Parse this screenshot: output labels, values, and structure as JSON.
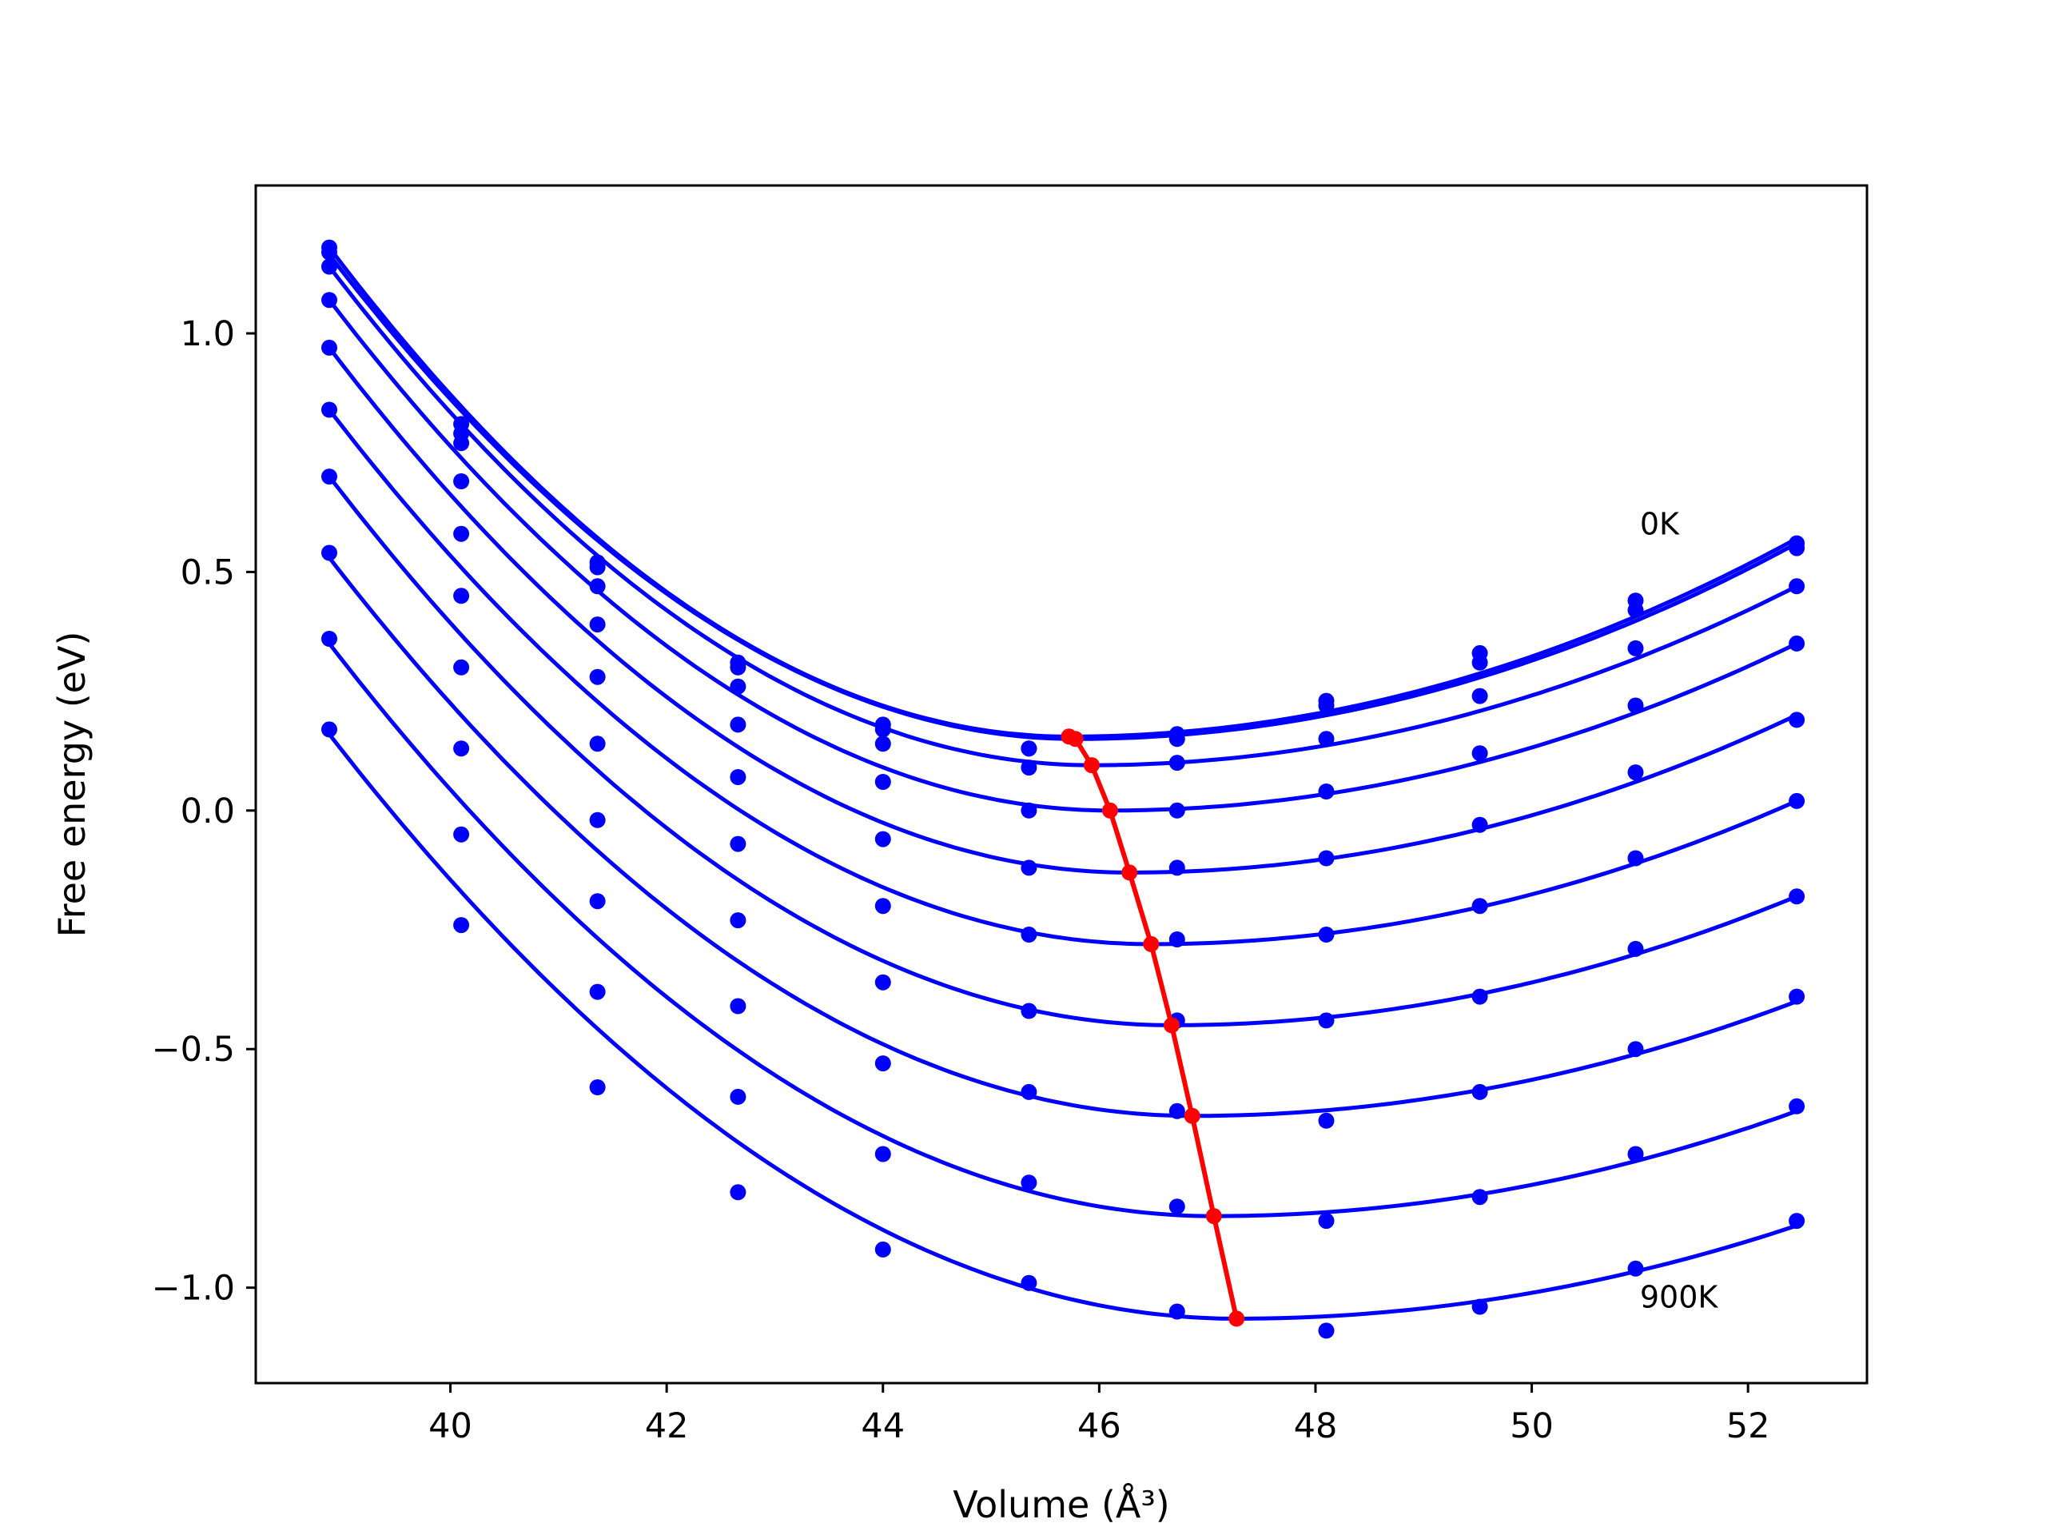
{
  "chart_data": {
    "type": "line",
    "xlabel": "Volume (Å³)",
    "ylabel": "Free energy (eV)",
    "xlim": [
      38.2,
      53.1
    ],
    "ylim": [
      -1.2,
      1.31
    ],
    "xticks": [
      40,
      42,
      44,
      46,
      48,
      50,
      52
    ],
    "xtick_labels": [
      "40",
      "42",
      "44",
      "46",
      "48",
      "50",
      "52"
    ],
    "yticks": [
      -1.0,
      -0.5,
      0.0,
      0.5,
      1.0
    ],
    "ytick_labels": [
      "−1.0",
      "−0.5",
      "0.0",
      "0.5",
      "1.0"
    ],
    "grid": false,
    "annotations": [
      {
        "text": "0K",
        "x": 51.0,
        "y": 0.6
      },
      {
        "text": "900K",
        "x": 51.0,
        "y": -1.02
      }
    ],
    "x": [
      38.88,
      40.1,
      41.36,
      42.66,
      44.0,
      45.35,
      46.72,
      48.1,
      49.52,
      50.96,
      52.45
    ],
    "point_series": [
      [
        1.18,
        0.81,
        0.52,
        0.31,
        0.18,
        0.13,
        0.16,
        0.23,
        0.33,
        0.44,
        0.56
      ],
      [
        1.17,
        0.79,
        0.51,
        0.3,
        0.17,
        0.13,
        0.15,
        0.22,
        0.31,
        0.42,
        0.55
      ],
      [
        1.14,
        0.77,
        0.47,
        0.26,
        0.14,
        0.09,
        0.1,
        0.15,
        0.24,
        0.34,
        0.47
      ],
      [
        1.07,
        0.69,
        0.39,
        0.18,
        0.06,
        0.0,
        0.0,
        0.04,
        0.12,
        0.22,
        0.35
      ],
      [
        0.97,
        0.58,
        0.28,
        0.07,
        -0.06,
        -0.12,
        -0.12,
        -0.1,
        -0.03,
        0.08,
        0.19
      ],
      [
        0.84,
        0.45,
        0.14,
        -0.07,
        -0.2,
        -0.26,
        -0.27,
        -0.26,
        -0.2,
        -0.1,
        0.02
      ],
      [
        0.7,
        0.3,
        -0.02,
        -0.23,
        -0.36,
        -0.42,
        -0.44,
        -0.44,
        -0.39,
        -0.29,
        -0.18
      ],
      [
        0.54,
        0.13,
        -0.19,
        -0.41,
        -0.53,
        -0.59,
        -0.63,
        -0.65,
        -0.59,
        -0.5,
        -0.39
      ],
      [
        0.36,
        -0.05,
        -0.38,
        -0.6,
        -0.72,
        -0.78,
        -0.83,
        -0.86,
        -0.81,
        -0.72,
        -0.62
      ],
      [
        0.17,
        -0.24,
        -0.58,
        -0.8,
        -0.92,
        -0.99,
        -1.05,
        -1.09,
        -1.04,
        -0.96,
        -0.86
      ]
    ],
    "fit_minima": [
      {
        "v": 45.72,
        "f": 0.155
      },
      {
        "v": 45.78,
        "f": 0.15
      },
      {
        "v": 45.93,
        "f": 0.095
      },
      {
        "v": 46.1,
        "f": 0.0
      },
      {
        "v": 46.28,
        "f": -0.13
      },
      {
        "v": 46.48,
        "f": -0.28
      },
      {
        "v": 46.67,
        "f": -0.45
      },
      {
        "v": 46.86,
        "f": -0.64
      },
      {
        "v": 47.06,
        "f": -0.85
      },
      {
        "v": 47.27,
        "f": -1.065
      }
    ],
    "fit_curve_ends": [
      {
        "left": 1.18,
        "right": 0.57
      },
      {
        "left": 1.165,
        "right": 0.56
      },
      {
        "left": 1.14,
        "right": 0.47
      },
      {
        "left": 1.07,
        "right": 0.35
      },
      {
        "left": 0.97,
        "right": 0.2
      },
      {
        "left": 0.84,
        "right": 0.02
      },
      {
        "left": 0.7,
        "right": -0.18
      },
      {
        "left": 0.53,
        "right": -0.4
      },
      {
        "left": 0.35,
        "right": -0.63
      },
      {
        "left": 0.16,
        "right": -0.87
      }
    ],
    "colors": {
      "points": "#0000ff",
      "curves": "#0000ff",
      "minima": "#ff0000",
      "axes": "#000000"
    }
  }
}
